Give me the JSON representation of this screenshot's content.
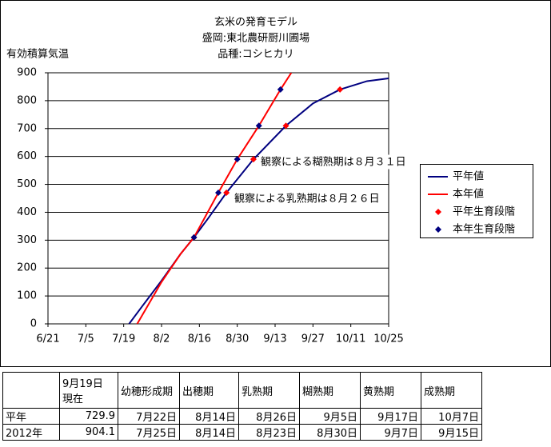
{
  "chart_data": {
    "type": "line",
    "title": [
      "玄米の発育モデル",
      "盛岡:東北農研厨川圃場",
      "品種:コシヒカリ"
    ],
    "y_label": "有効積算気温",
    "xlim": [
      0,
      126
    ],
    "xticks": [
      {
        "value": 0,
        "label": "6/21"
      },
      {
        "value": 14,
        "label": "7/5"
      },
      {
        "value": 28,
        "label": "7/19"
      },
      {
        "value": 42,
        "label": "8/2"
      },
      {
        "value": 56,
        "label": "8/16"
      },
      {
        "value": 70,
        "label": "8/30"
      },
      {
        "value": 84,
        "label": "9/13"
      },
      {
        "value": 98,
        "label": "9/27"
      },
      {
        "value": 112,
        "label": "10/11"
      },
      {
        "value": 126,
        "label": "10/25"
      }
    ],
    "ylim": [
      0,
      900
    ],
    "yticks": [
      0,
      100,
      200,
      300,
      400,
      500,
      600,
      700,
      800,
      900
    ],
    "grid": true,
    "series": [
      {
        "name": "平年値",
        "type": "line",
        "color": "#000080",
        "x": [
          30,
          35,
          42,
          49,
          54,
          59,
          66,
          76,
          88,
          98,
          108,
          118,
          126
        ],
        "values": [
          0,
          65,
          155,
          250,
          310,
          375,
          470,
          590,
          710,
          790,
          840,
          870,
          880
        ]
      },
      {
        "name": "本年値",
        "type": "line",
        "color": "#ff0000",
        "x": [
          33,
          42,
          49,
          54,
          63,
          70,
          78,
          86,
          90
        ],
        "values": [
          0,
          150,
          250,
          310,
          470,
          590,
          710,
          840,
          900
        ]
      },
      {
        "name": "平年生育段階",
        "type": "scatter",
        "color": "#ff0000",
        "x": [
          54,
          66,
          76,
          88,
          108
        ],
        "values": [
          310,
          470,
          590,
          710,
          840
        ]
      },
      {
        "name": "本年生育段階",
        "type": "scatter",
        "color": "#000080",
        "x": [
          54,
          63,
          70,
          78,
          86
        ],
        "values": [
          310,
          470,
          590,
          710,
          840
        ]
      }
    ],
    "annotations": [
      "観察による糊熟期は８月３１日",
      "観察による乳熟期は８月２６日"
    ]
  },
  "table": {
    "header": [
      [
        ""
      ],
      [
        "9月19日",
        "現在"
      ],
      [
        "幼穂形成期"
      ],
      [
        "出穂期"
      ],
      [
        "乳熟期"
      ],
      [
        "糊熟期"
      ],
      [
        "黄熟期"
      ],
      [
        "成熟期"
      ]
    ],
    "rows": [
      [
        "平年",
        "729.9",
        "7月22日",
        "8月14日",
        "8月26日",
        "9月5日",
        "9月17日",
        "10月7日"
      ],
      [
        "2012年",
        "904.1",
        "7月25日",
        "8月14日",
        "8月23日",
        "8月30日",
        "9月7日",
        "9月15日"
      ]
    ]
  }
}
